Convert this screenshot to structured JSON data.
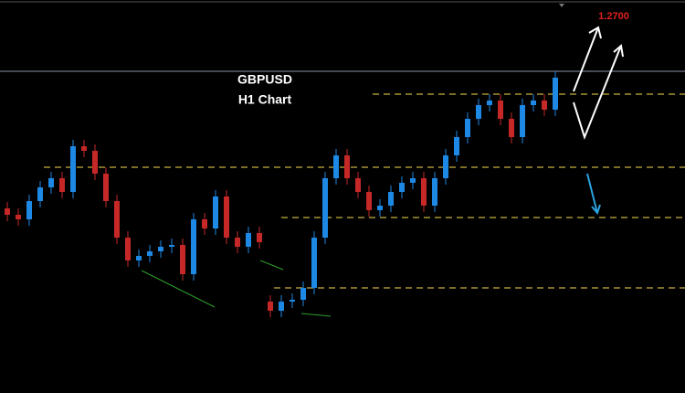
{
  "chart_data": {
    "type": "candlestick",
    "title": "GBPUSD",
    "subtitle": "H1 Chart",
    "annotation": "1.2700",
    "categories": [
      null,
      null,
      null,
      null,
      null,
      null,
      null,
      null,
      null,
      null,
      null,
      null,
      null,
      null,
      null,
      null,
      null,
      null,
      null,
      null,
      null,
      null,
      null,
      null,
      null,
      null,
      null,
      null,
      null,
      null,
      null,
      null,
      null,
      null,
      null,
      null,
      null,
      null,
      null,
      null,
      null,
      null,
      null,
      null,
      null,
      null,
      null,
      null,
      null,
      null,
      null
    ],
    "open": [
      1.249,
      1.2483,
      1.2478,
      1.2498,
      1.2513,
      1.2523,
      1.2508,
      1.2558,
      1.2553,
      1.2528,
      1.2498,
      1.2458,
      1.2433,
      1.2438,
      1.2443,
      1.2448,
      1.245,
      1.2418,
      1.2478,
      1.2468,
      1.2503,
      1.2458,
      1.2448,
      1.2463,
      1.2388,
      1.2378,
      1.2388,
      1.239,
      1.2403,
      1.2458,
      1.2523,
      1.2548,
      1.2523,
      1.2508,
      1.2488,
      1.2493,
      1.2508,
      1.2518,
      1.2523,
      1.2493,
      1.2523,
      1.2548,
      1.2568,
      1.2588,
      1.2603,
      1.2608,
      1.2588,
      1.2568,
      1.2603,
      1.2608,
      1.2598
    ],
    "high": [
      1.2497,
      1.249,
      1.2505,
      1.252,
      1.253,
      1.253,
      1.2565,
      1.2565,
      1.256,
      1.2535,
      1.2505,
      1.2465,
      1.2445,
      1.245,
      1.2455,
      1.2457,
      1.2457,
      1.2485,
      1.2485,
      1.251,
      1.251,
      1.2465,
      1.247,
      1.247,
      1.2395,
      1.2395,
      1.2397,
      1.241,
      1.2465,
      1.253,
      1.2555,
      1.2555,
      1.253,
      1.2515,
      1.25,
      1.2515,
      1.2525,
      1.253,
      1.253,
      1.253,
      1.2555,
      1.2575,
      1.2595,
      1.261,
      1.2615,
      1.2615,
      1.2595,
      1.261,
      1.2615,
      1.2615,
      1.264
    ],
    "low": [
      1.2476,
      1.2471,
      1.2471,
      1.2491,
      1.2506,
      1.2501,
      1.2501,
      1.2546,
      1.2521,
      1.2491,
      1.2451,
      1.2426,
      1.2426,
      1.2431,
      1.2436,
      1.2441,
      1.2411,
      1.2411,
      1.2461,
      1.2461,
      1.2451,
      1.2441,
      1.2441,
      1.2446,
      1.2371,
      1.2371,
      1.2381,
      1.2383,
      1.2396,
      1.2451,
      1.2516,
      1.2516,
      1.2501,
      1.2481,
      1.2481,
      1.2486,
      1.2501,
      1.2511,
      1.2486,
      1.2486,
      1.2516,
      1.2541,
      1.2561,
      1.2581,
      1.2596,
      1.2581,
      1.2561,
      1.2561,
      1.2596,
      1.2591,
      1.2591
    ],
    "close": [
      1.2483,
      1.2478,
      1.2498,
      1.2513,
      1.2523,
      1.2508,
      1.2558,
      1.2553,
      1.2528,
      1.2498,
      1.2458,
      1.2433,
      1.2438,
      1.2443,
      1.2448,
      1.245,
      1.2418,
      1.2478,
      1.2468,
      1.2503,
      1.2458,
      1.2448,
      1.2463,
      1.2453,
      1.2378,
      1.2388,
      1.239,
      1.2403,
      1.2458,
      1.2523,
      1.2548,
      1.2523,
      1.2508,
      1.2488,
      1.2493,
      1.2508,
      1.2518,
      1.2523,
      1.2493,
      1.2523,
      1.2548,
      1.2568,
      1.2588,
      1.2603,
      1.2608,
      1.2588,
      1.2568,
      1.2603,
      1.2608,
      1.2598,
      1.2633
    ],
    "levels": [
      1.2615,
      1.2535,
      1.248,
      1.2403
    ],
    "price_line": 1.264,
    "ylim": [
      1.2288,
      1.2718
    ],
    "up_color": "#1e88e5",
    "down_color": "#c62828",
    "level_color": "#c8b040"
  }
}
